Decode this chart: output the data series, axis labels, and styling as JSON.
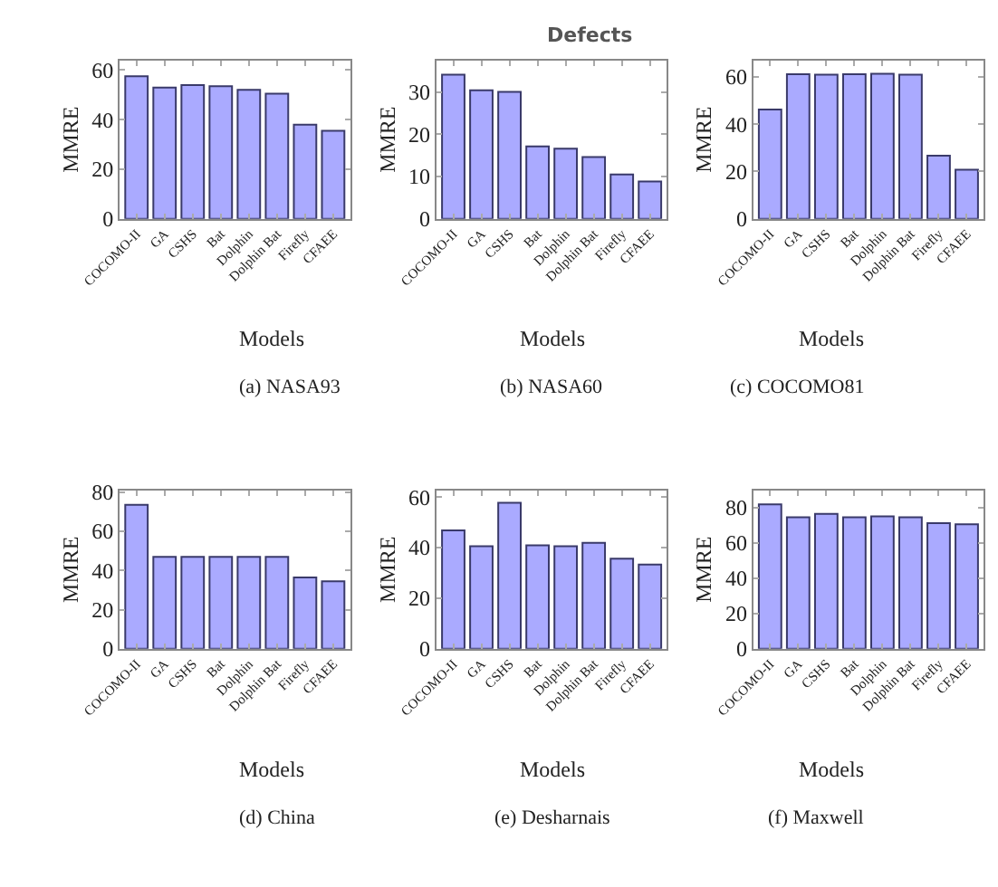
{
  "chart_data": [
    {
      "type": "bar",
      "title": "(a) NASA93",
      "xlabel": "Models",
      "ylabel": "MMRE",
      "categories": [
        "COCOMO-II",
        "GA",
        "CSHS",
        "Bat",
        "Dolphin",
        "Dolphin Bat",
        "Firefly",
        "CFAEE"
      ],
      "values": [
        57.5,
        53,
        54,
        53.5,
        52,
        50.5,
        38,
        35.5
      ],
      "color": "#aaaaff",
      "ylim": [
        0,
        64
      ],
      "yticks": [
        0,
        20,
        40,
        60
      ]
    },
    {
      "type": "bar",
      "title": "(b) NASA60",
      "xlabel": "Models",
      "ylabel": "MMRE",
      "categories": [
        "COCOMO-II",
        "GA",
        "CSHS",
        "Bat",
        "Dolphin",
        "Dolphin Bat",
        "Firefly",
        "CFAEE"
      ],
      "values": [
        34.1,
        30.4,
        30,
        17.1,
        16.6,
        14.6,
        10.5,
        8.8
      ],
      "color": "#aaaaff",
      "ylim": [
        0,
        37.5
      ],
      "yticks": [
        0,
        10,
        20,
        30
      ],
      "annotations": [
        "Defects"
      ]
    },
    {
      "type": "bar",
      "title": "(c) COCOMO81",
      "xlabel": "Models",
      "ylabel": "MMRE",
      "categories": [
        "COCOMO-II",
        "GA",
        "CSHS",
        "Bat",
        "Dolphin",
        "Dolphin Bat",
        "Firefly",
        "CFAEE"
      ],
      "values": [
        46.2,
        61.1,
        60.9,
        61.1,
        61.3,
        60.9,
        26.7,
        20.7
      ],
      "color": "#aaaaff",
      "ylim": [
        0,
        67
      ],
      "yticks": [
        0,
        20,
        40,
        60
      ]
    },
    {
      "type": "bar",
      "title": "(d) China",
      "xlabel": "Models",
      "ylabel": "MMRE",
      "categories": [
        "COCOMO-II",
        "GA",
        "CSHS",
        "Bat",
        "Dolphin",
        "Dolphin Bat",
        "Firefly",
        "CFAEE"
      ],
      "values": [
        73.5,
        47,
        47,
        47,
        47,
        47,
        36.4,
        34.5
      ],
      "color": "#aaaaff",
      "ylim": [
        0,
        81
      ],
      "yticks": [
        0,
        20,
        40,
        60,
        80
      ]
    },
    {
      "type": "bar",
      "title": "(e) Desharnais",
      "xlabel": "Models",
      "ylabel": "MMRE",
      "categories": [
        "COCOMO-II",
        "GA",
        "CSHS",
        "Bat",
        "Dolphin",
        "Dolphin Bat",
        "Firefly",
        "CFAEE"
      ],
      "values": [
        46.8,
        40.5,
        57.7,
        40.9,
        40.5,
        41.9,
        35.6,
        33.3
      ],
      "color": "#aaaaff",
      "ylim": [
        0,
        62.7
      ],
      "yticks": [
        0,
        20,
        40,
        60
      ]
    },
    {
      "type": "bar",
      "title": "(f) Maxwell",
      "xlabel": "Models",
      "ylabel": "MMRE",
      "categories": [
        "COCOMO-II",
        "GA",
        "CSHS",
        "Bat",
        "Dolphin",
        "Dolphin Bat",
        "Firefly",
        "CFAEE"
      ],
      "values": [
        82,
        74.6,
        76.6,
        74.6,
        75.2,
        74.6,
        71.3,
        70.7
      ],
      "color": "#aaaaff",
      "ylim": [
        0,
        90
      ],
      "yticks": [
        0,
        20,
        40,
        60,
        80
      ]
    }
  ]
}
